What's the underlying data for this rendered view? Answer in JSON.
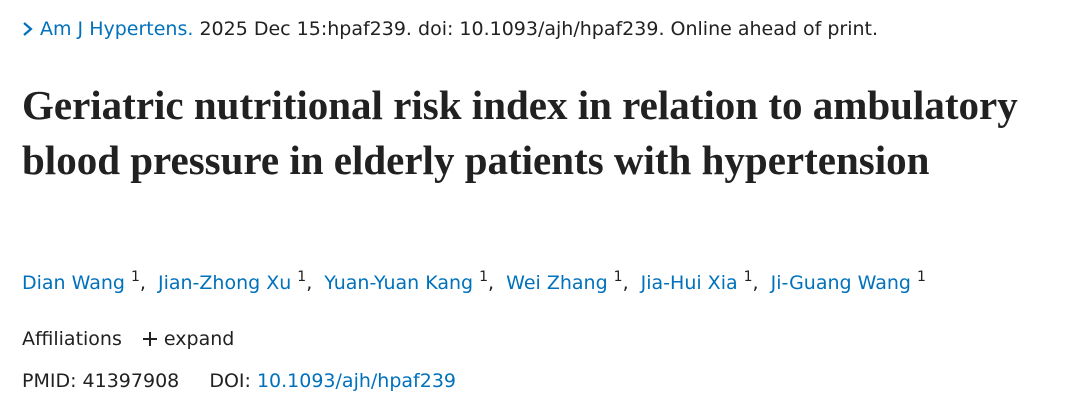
{
  "journal": {
    "name": "Am J Hypertens.",
    "citation": "2025 Dec 15:hpaf239. doi: 10.1093/ajh/hpaf239. Online ahead of print."
  },
  "title": "Geriatric nutritional risk index in relation to ambulatory blood pressure in elderly patients with hypertension",
  "authors": {
    "separator": ",",
    "list": [
      {
        "name": "Dian Wang",
        "affiliation": "1"
      },
      {
        "name": "Jian-Zhong Xu",
        "affiliation": "1"
      },
      {
        "name": "Yuan-Yuan Kang",
        "affiliation": "1"
      },
      {
        "name": "Wei Zhang",
        "affiliation": "1"
      },
      {
        "name": "Jia-Hui Xia",
        "affiliation": "1"
      },
      {
        "name": "Ji-Guang Wang",
        "affiliation": "1"
      }
    ]
  },
  "affiliations": {
    "label": "Affiliations",
    "toggle": "expand"
  },
  "identifiers": {
    "pmid_label": "PMID:",
    "pmid": "41397908",
    "doi_label": "DOI:",
    "doi": "10.1093/ajh/hpaf239"
  }
}
